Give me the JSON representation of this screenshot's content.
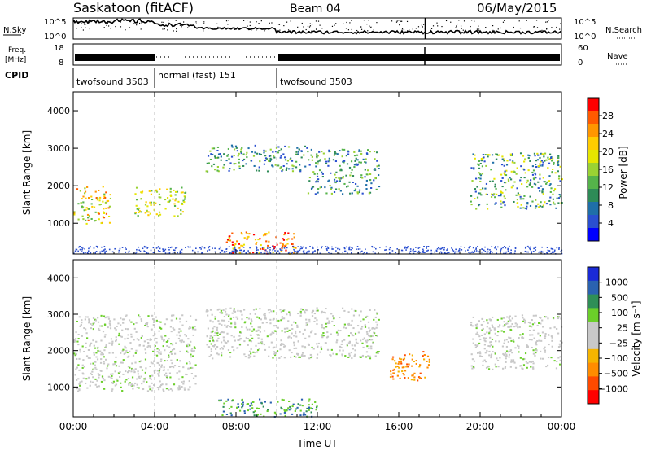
{
  "header": {
    "station": "Saskatoon (fitACF)",
    "beam": "Beam 04",
    "date": "06/May/2015"
  },
  "nsky_panel": {
    "left_label": "N.Sky",
    "right_label": "N.Search",
    "left_ticks": [
      "10^5",
      "10^0"
    ],
    "right_ticks": [
      "10^5",
      "10^0"
    ]
  },
  "freq_panel": {
    "left_label_1": "Freq.",
    "left_label_2": "[MHz]",
    "right_label": "Nave",
    "left_ticks": [
      "18",
      "8"
    ],
    "right_ticks": [
      "60",
      "0"
    ]
  },
  "cpid": {
    "label": "CPID",
    "segments": [
      {
        "name": "twofsound 3503",
        "start_hour": 0,
        "end_hour": 4
      },
      {
        "name": "normal (fast) 151",
        "start_hour": 4,
        "end_hour": 10
      },
      {
        "name": "twofsound 3503",
        "start_hour": 10,
        "end_hour": 24
      }
    ]
  },
  "power_panel": {
    "ylabel": "Slant Range [km]",
    "colorbar_label": "Power [dB]",
    "colorbar_ticks": [
      "28",
      "24",
      "20",
      "16",
      "12",
      "8",
      "4"
    ]
  },
  "velocity_panel": {
    "ylabel": "Slant Range [km]",
    "colorbar_label": "Velocity [m s⁻¹]",
    "colorbar_ticks": [
      "1000",
      "500",
      "100",
      "25",
      "−25",
      "−100",
      "−500",
      "−1000"
    ]
  },
  "xaxis": {
    "label": "Time UT",
    "ticks": [
      "00:00",
      "04:00",
      "08:00",
      "12:00",
      "16:00",
      "20:00",
      "00:00"
    ]
  },
  "colors": {
    "power_scale": [
      "#ff0000",
      "#ff5a00",
      "#ff9600",
      "#ffcc00",
      "#e6e600",
      "#9ad233",
      "#55b34a",
      "#2e8b57",
      "#1f6fa8",
      "#2a4fd0",
      "#0000ff"
    ],
    "velocity_scale": [
      "#1a2ad6",
      "#2a62b0",
      "#2f8f57",
      "#6bcf2a",
      "#c8c8c8",
      "#c8c8c8",
      "#f5b400",
      "#ff8c00",
      "#ff4a00",
      "#ff0000"
    ],
    "mark": "#000000"
  },
  "chart_data": [
    {
      "type": "heatmap",
      "title": "Saskatoon (fitACF)  Beam 04  06/May/2015",
      "quantity": "Power",
      "unit": "dB",
      "xlabel": "Time UT",
      "ylabel": "Slant Range [km]",
      "xlim": [
        0,
        24
      ],
      "ylim": [
        180,
        4500
      ],
      "yticks": [
        1000,
        2000,
        3000,
        4000
      ],
      "clim": [
        0,
        30
      ],
      "scatter_regions": [
        {
          "t0": 0.0,
          "t1": 1.8,
          "r0": 1000,
          "r1": 2000,
          "level": "12-24"
        },
        {
          "t0": 3.0,
          "t1": 5.5,
          "r0": 1200,
          "r1": 2000,
          "level": "12-20"
        },
        {
          "t0": 6.5,
          "t1": 11.5,
          "r0": 2400,
          "r1": 3100,
          "level": "8-16"
        },
        {
          "t0": 7.5,
          "t1": 11.0,
          "r0": 200,
          "r1": 800,
          "level": "16-28"
        },
        {
          "t0": 11.5,
          "t1": 15.0,
          "r0": 1800,
          "r1": 3000,
          "level": "8-16"
        },
        {
          "t0": 19.5,
          "t1": 24.0,
          "r0": 1400,
          "r1": 2900,
          "level": "8-20"
        }
      ]
    },
    {
      "type": "heatmap",
      "quantity": "Velocity",
      "unit": "m s-1",
      "xlabel": "Time UT",
      "ylabel": "Slant Range [km]",
      "xlim": [
        0,
        24
      ],
      "ylim": [
        180,
        4500
      ],
      "yticks": [
        1000,
        2000,
        3000,
        4000
      ],
      "clim": [
        -1000,
        1000
      ],
      "scatter_regions": [
        {
          "t0": 0.0,
          "t1": 6.0,
          "r0": 900,
          "r1": 3000,
          "level": "-25 to 25"
        },
        {
          "t0": 6.5,
          "t1": 15.0,
          "r0": 1800,
          "r1": 3200,
          "level": "-25 to 25"
        },
        {
          "t0": 7.0,
          "t1": 12.0,
          "r0": 200,
          "r1": 700,
          "level": "25 to 500"
        },
        {
          "t0": 15.5,
          "t1": 17.5,
          "r0": 1200,
          "r1": 2000,
          "level": "-100 to -500"
        },
        {
          "t0": 19.5,
          "t1": 24.0,
          "r0": 1500,
          "r1": 3000,
          "level": "-25 to 25"
        }
      ]
    }
  ]
}
